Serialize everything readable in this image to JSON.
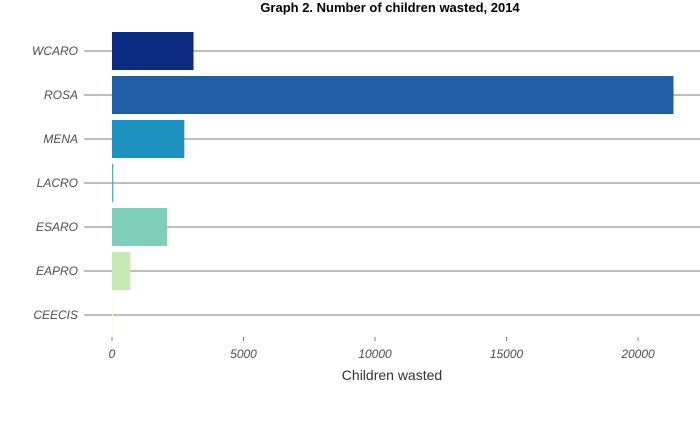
{
  "chart_data": {
    "type": "bar",
    "orientation": "horizontal",
    "title": "Graph 2. Number of children wasted, 2014",
    "xlabel": "Children wasted",
    "ylabel": "",
    "xlim": [
      0,
      21500
    ],
    "xticks": [
      0,
      5000,
      10000,
      15000,
      20000
    ],
    "grid": "horizontal lines at each category",
    "legend": "none",
    "categories": [
      "WCARO",
      "ROSA",
      "MENA",
      "LACRO",
      "ESARO",
      "EAPRO",
      "CEECIS"
    ],
    "values": [
      3100,
      21350,
      2750,
      50,
      2100,
      700,
      15
    ],
    "colors": [
      "#0c2c84",
      "#225ea8",
      "#1d91c0",
      "#41b6c4",
      "#7fcdbb",
      "#c7e9b4",
      "#ffffd9"
    ]
  }
}
